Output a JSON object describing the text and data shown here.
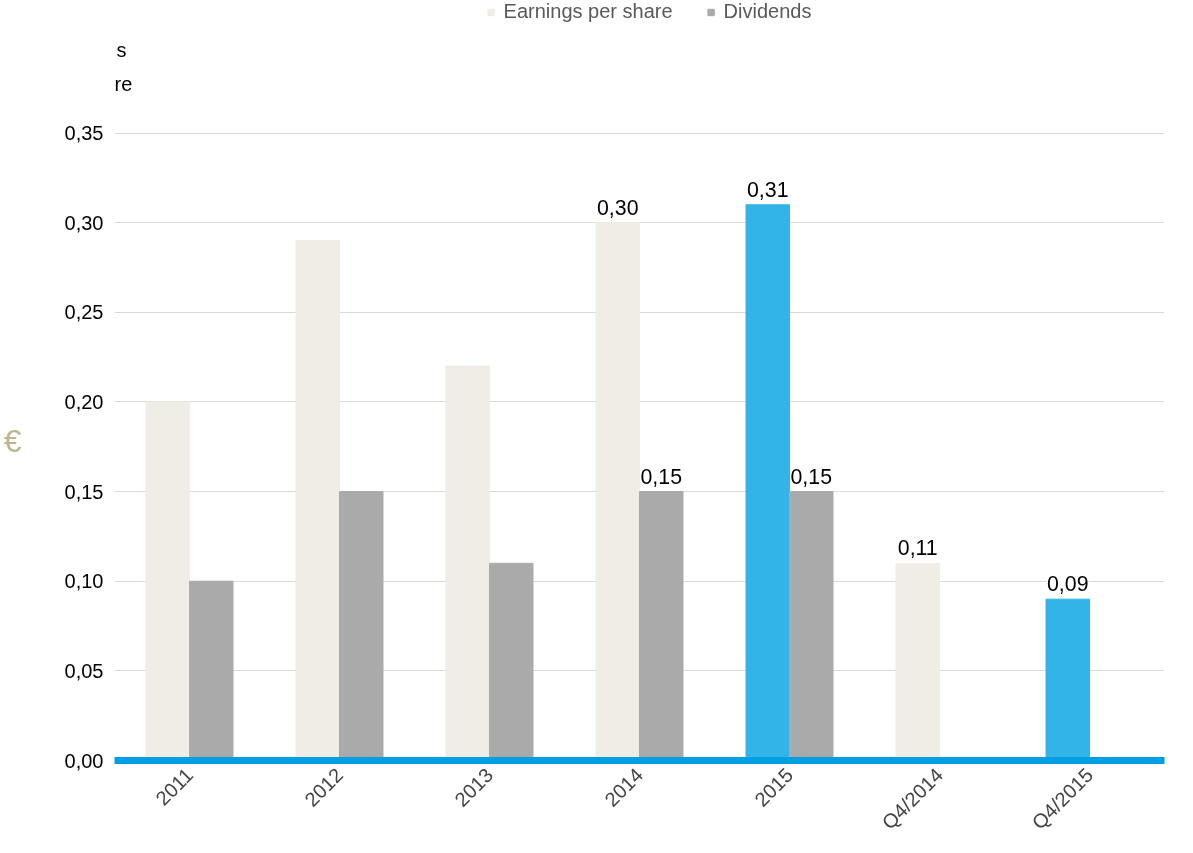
{
  "chart_data": {
    "type": "bar",
    "ylabel": "€",
    "categories": [
      "2011",
      "2012",
      "2013",
      "2014",
      "2015",
      "Q4/2014",
      "Q4/2015"
    ],
    "series": [
      {
        "name": "Earnings per share",
        "color": "#f0ede6",
        "colors": [
          "#f0ede6",
          "#f0ede6",
          "#f0ede6",
          "#f0ede6",
          "#33b4e8",
          "#f0ede6",
          "#33b4e8"
        ],
        "values": [
          0.2,
          0.29,
          0.22,
          0.3,
          0.31,
          0.11,
          0.09
        ],
        "value_labels": [
          null,
          null,
          null,
          "0,30",
          "0,31",
          "0,11",
          "0,09"
        ]
      },
      {
        "name": "Dividends",
        "color": "#aaaaaa",
        "values": [
          0.1,
          0.15,
          0.11,
          0.15,
          0.15,
          null,
          null
        ],
        "value_labels": [
          null,
          null,
          null,
          "0,15",
          "0,15",
          null,
          null
        ]
      }
    ],
    "ylim": [
      0,
      0.35
    ],
    "yticks": [
      {
        "value": 0,
        "label": "0,00"
      },
      {
        "value": 0.05,
        "label": "0,05"
      },
      {
        "value": 0.1,
        "label": "0,10"
      },
      {
        "value": 0.15,
        "label": "0,15"
      },
      {
        "value": 0.2,
        "label": "0,20"
      },
      {
        "value": 0.25,
        "label": "0,25"
      },
      {
        "value": 0.3,
        "label": "0,30"
      },
      {
        "value": 0.35,
        "label": "0,35"
      }
    ],
    "grid": "y",
    "legend": "top",
    "annotations": [
      "s",
      "re"
    ]
  }
}
